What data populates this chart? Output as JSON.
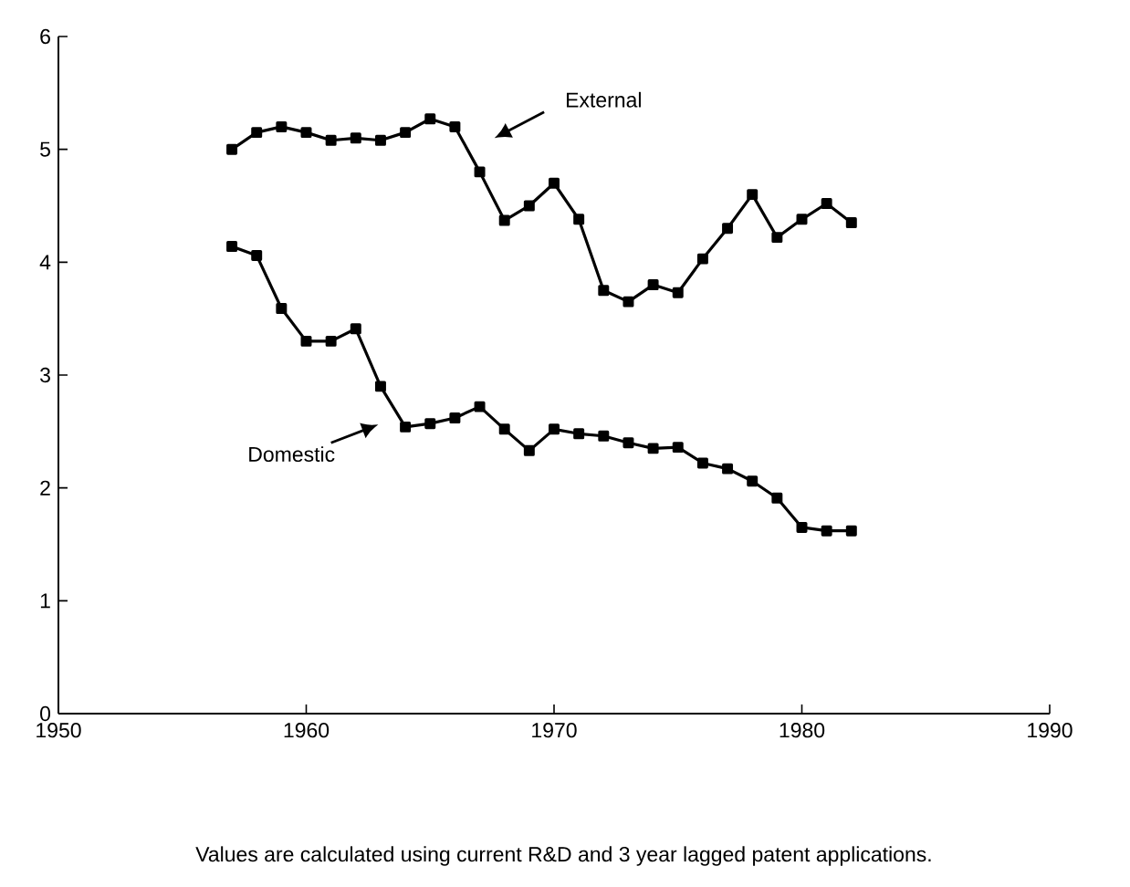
{
  "chart_data": {
    "type": "line",
    "x": [
      1957,
      1958,
      1959,
      1960,
      1961,
      1962,
      1963,
      1964,
      1965,
      1966,
      1967,
      1968,
      1969,
      1970,
      1971,
      1972,
      1973,
      1974,
      1975,
      1976,
      1977,
      1978,
      1979,
      1980,
      1981,
      1982
    ],
    "series": [
      {
        "name": "External",
        "color": "#000000",
        "values": [
          5.0,
          5.15,
          5.2,
          5.15,
          5.08,
          5.1,
          5.08,
          5.15,
          5.27,
          5.2,
          4.8,
          4.37,
          4.5,
          4.7,
          4.38,
          3.75,
          3.65,
          3.8,
          3.73,
          4.03,
          4.3,
          4.6,
          4.22,
          4.38,
          4.52,
          4.35
        ]
      },
      {
        "name": "Domestic",
        "color": "#000000",
        "values": [
          4.14,
          4.06,
          3.59,
          3.3,
          3.3,
          3.41,
          2.9,
          2.54,
          2.57,
          2.62,
          2.72,
          2.52,
          2.33,
          2.52,
          2.48,
          2.46,
          2.4,
          2.35,
          2.36,
          2.22,
          2.17,
          2.06,
          1.91,
          1.65,
          1.62,
          1.62
        ]
      }
    ],
    "xlim": [
      1950,
      1990
    ],
    "xticks": [
      1950,
      1960,
      1970,
      1980,
      1990
    ],
    "ylim": [
      0,
      6
    ],
    "yticks": [
      0,
      1,
      2,
      3,
      4,
      5,
      6
    ],
    "marker": "square",
    "line_style": "solid",
    "annotations": [
      "Values are calculated using current R&D and 3 year lagged patent applications."
    ]
  }
}
